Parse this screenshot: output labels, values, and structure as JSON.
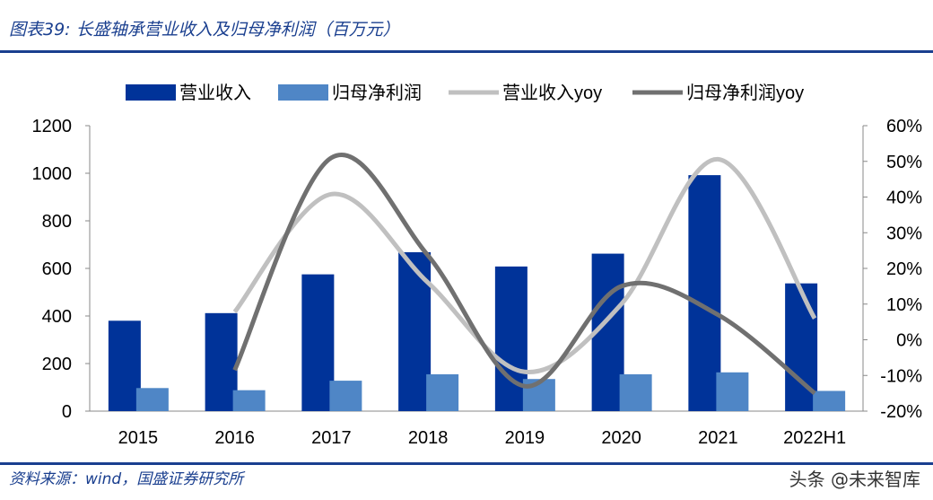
{
  "title": "图表39: 长盛轴承营业收入及归母净利润（百万元）",
  "source": "资料来源：wind，国盛证券研究所",
  "watermark": "头条 @未来智库",
  "chart_data": {
    "type": "bar+line",
    "categories": [
      "2015",
      "2016",
      "2017",
      "2018",
      "2019",
      "2020",
      "2021",
      "2022H1"
    ],
    "series": [
      {
        "name": "营业收入",
        "type": "bar",
        "axis": "left",
        "color": "#003399",
        "values": [
          380,
          412,
          575,
          668,
          608,
          662,
          992,
          537
        ]
      },
      {
        "name": "归母净利润",
        "type": "bar",
        "axis": "left",
        "color": "#4f86c6",
        "values": [
          97,
          88,
          128,
          155,
          135,
          155,
          163,
          85
        ]
      },
      {
        "name": "营业收入yoy",
        "type": "line",
        "axis": "right",
        "color": "#c0c0c0",
        "values": [
          null,
          7.8,
          40.8,
          16,
          -9,
          10,
          50.6,
          6
        ]
      },
      {
        "name": "归母净利润yoy",
        "type": "line",
        "axis": "right",
        "color": "#707070",
        "values": [
          null,
          -8.5,
          51,
          23.6,
          -13,
          15,
          7,
          -15
        ]
      }
    ],
    "left_axis": {
      "ylim": [
        0,
        1200
      ],
      "ticks": [
        "0",
        "200",
        "400",
        "600",
        "800",
        "1000",
        "1200"
      ]
    },
    "right_axis": {
      "ylim": [
        -20,
        60
      ],
      "ticks": [
        "-20%",
        "-10%",
        "0%",
        "10%",
        "20%",
        "30%",
        "40%",
        "50%",
        "60%"
      ]
    },
    "legend": "top"
  }
}
